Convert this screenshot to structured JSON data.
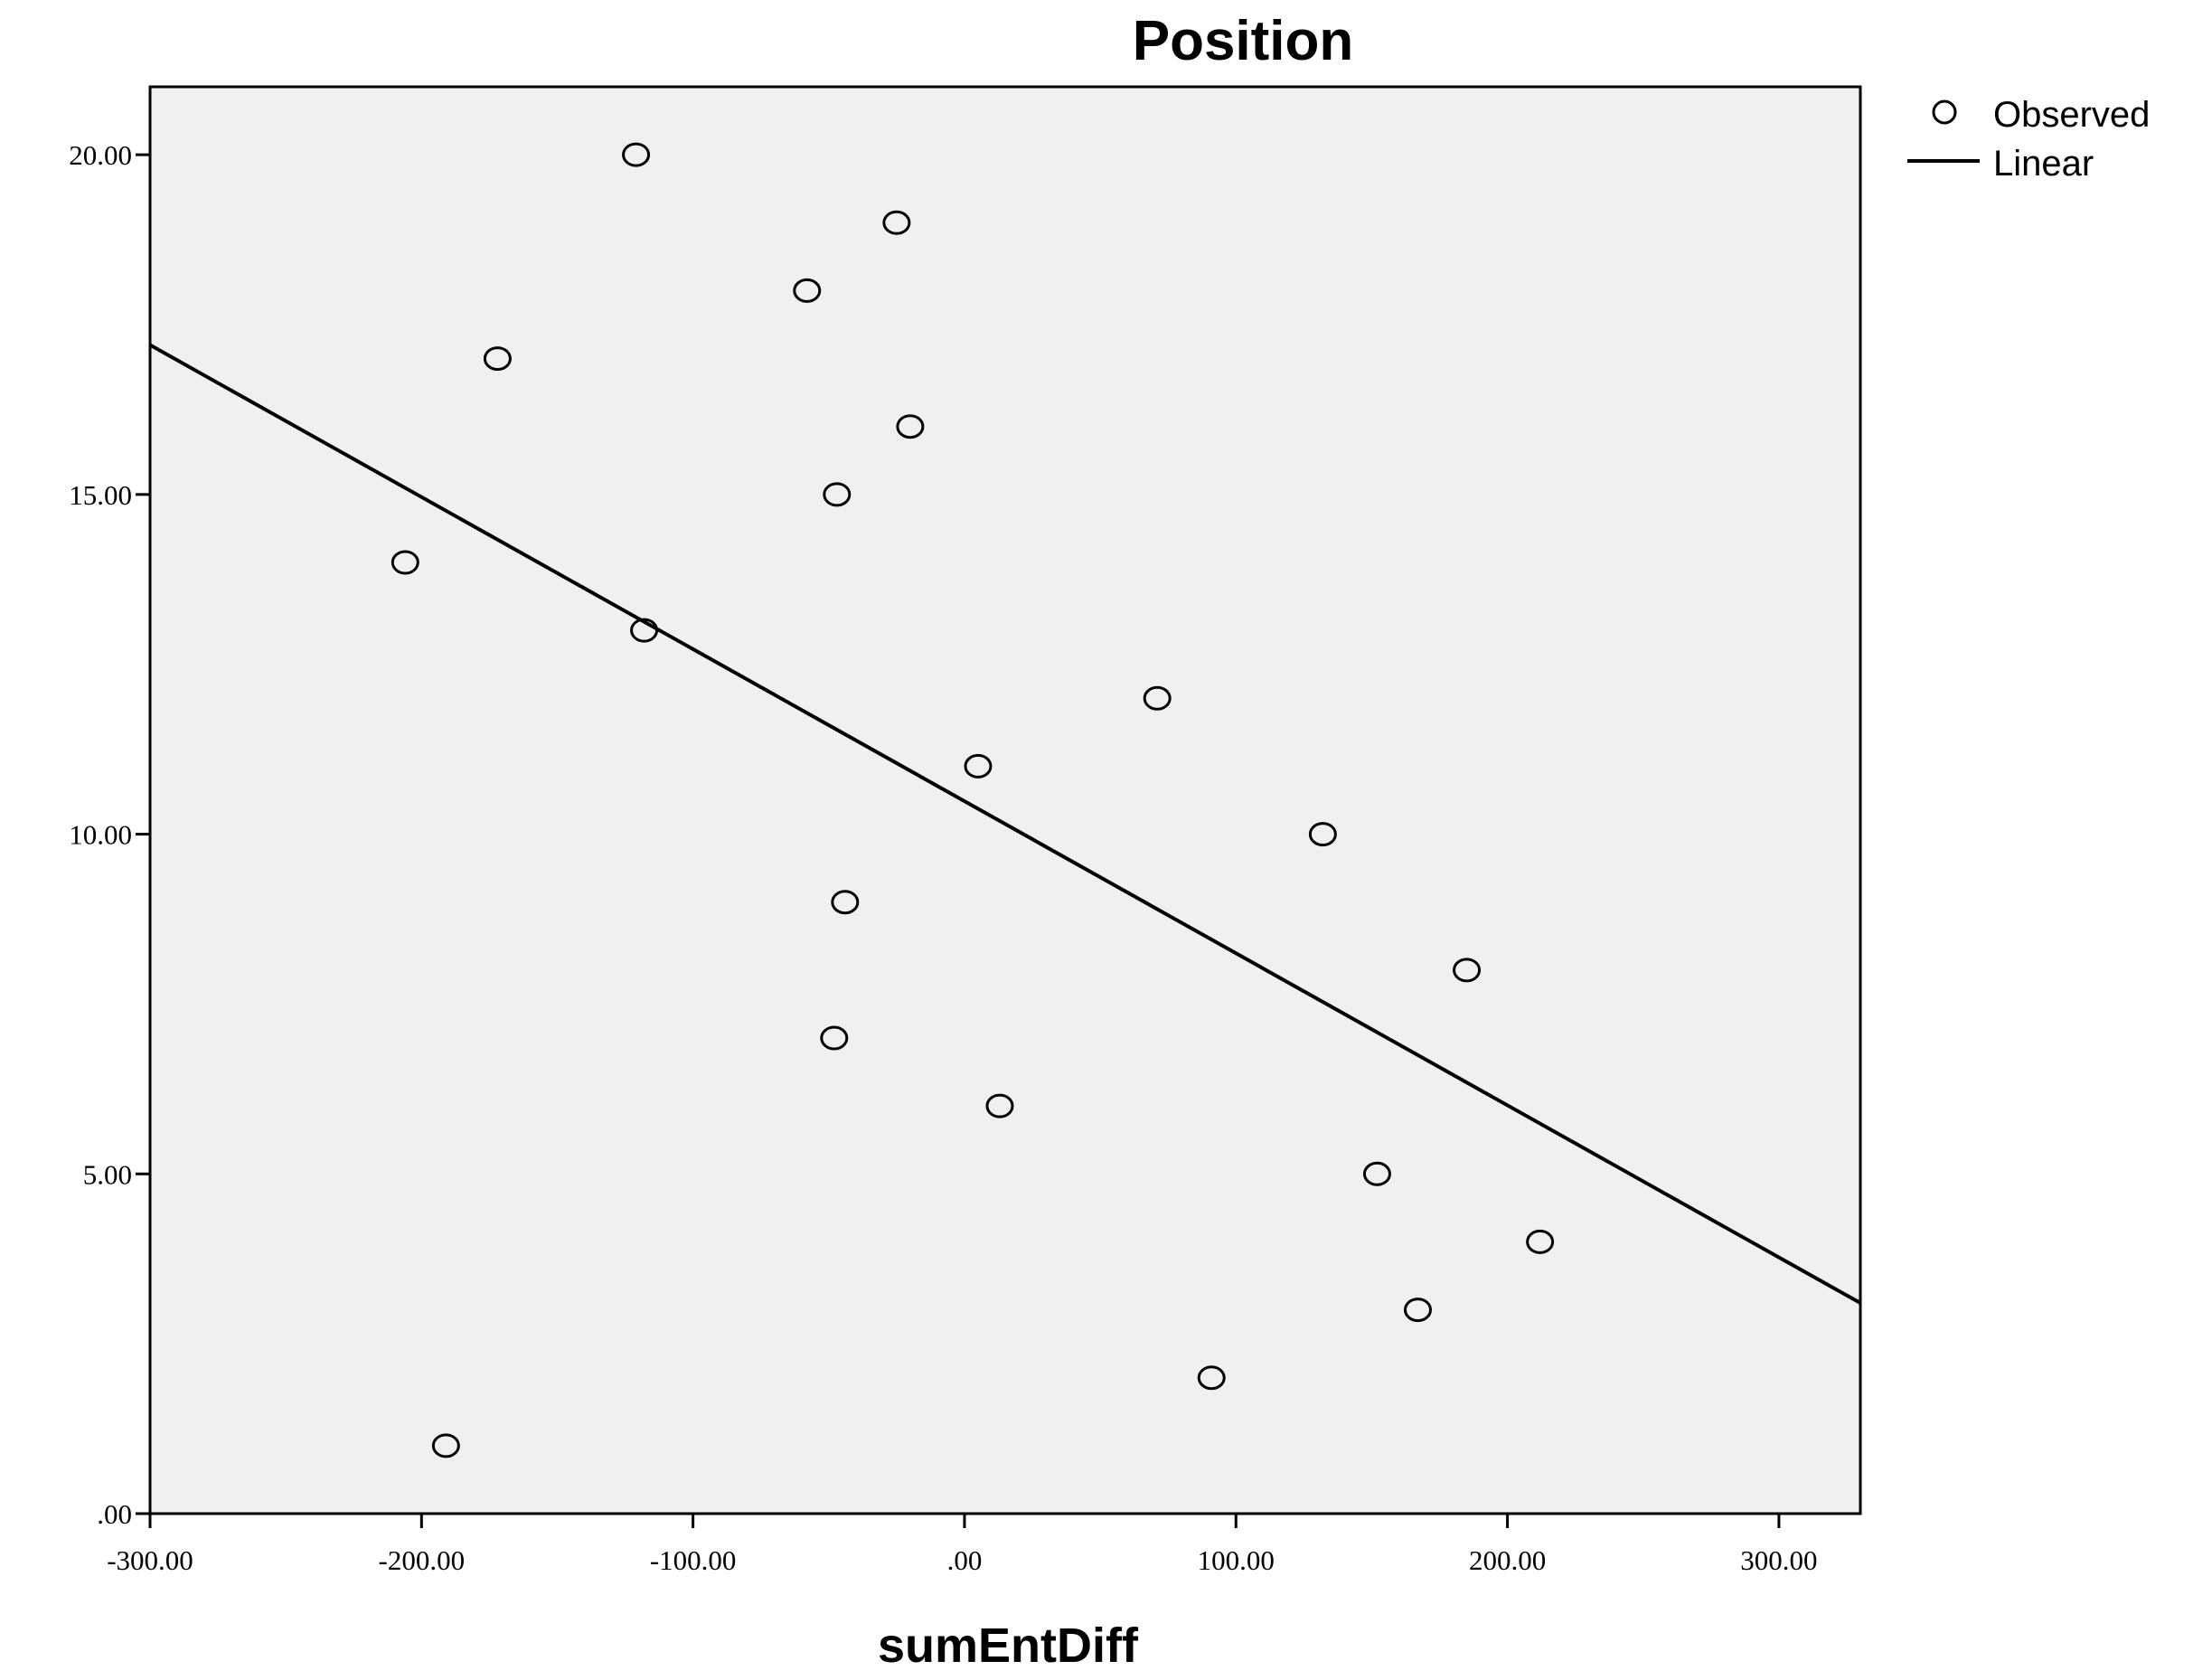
{
  "chart_data": {
    "type": "scatter",
    "title": "Position",
    "xlabel": "sumEntDiff",
    "ylabel": "",
    "xlim": [
      -300,
      330
    ],
    "ylim": [
      0,
      21
    ],
    "x_ticks": [
      {
        "value": -300,
        "label": "-300.00"
      },
      {
        "value": -200,
        "label": "-200.00"
      },
      {
        "value": -100,
        "label": "-100.00"
      },
      {
        "value": 0,
        "label": ".00"
      },
      {
        "value": 100,
        "label": "100.00"
      },
      {
        "value": 200,
        "label": "200.00"
      },
      {
        "value": 300,
        "label": "300.00"
      }
    ],
    "y_ticks": [
      {
        "value": 0,
        "label": ".00"
      },
      {
        "value": 5,
        "label": "5.00"
      },
      {
        "value": 10,
        "label": "10.00"
      },
      {
        "value": 15,
        "label": "15.00"
      },
      {
        "value": 20,
        "label": "20.00"
      }
    ],
    "grid": false,
    "legend_position": "top-right",
    "series": [
      {
        "name": "Observed",
        "kind": "points",
        "marker": "open-circle",
        "points": [
          {
            "x": -121,
            "y": 20
          },
          {
            "x": -25,
            "y": 19
          },
          {
            "x": -58,
            "y": 18
          },
          {
            "x": -172,
            "y": 17
          },
          {
            "x": -20,
            "y": 16
          },
          {
            "x": -47,
            "y": 15
          },
          {
            "x": -206,
            "y": 14
          },
          {
            "x": -118,
            "y": 13
          },
          {
            "x": 71,
            "y": 12
          },
          {
            "x": 5,
            "y": 11
          },
          {
            "x": 132,
            "y": 10
          },
          {
            "x": -44,
            "y": 9
          },
          {
            "x": 185,
            "y": 8
          },
          {
            "x": -48,
            "y": 7
          },
          {
            "x": 13,
            "y": 6
          },
          {
            "x": 152,
            "y": 5
          },
          {
            "x": 212,
            "y": 4
          },
          {
            "x": 167,
            "y": 3
          },
          {
            "x": 91,
            "y": 2
          },
          {
            "x": -191,
            "y": 1
          }
        ]
      },
      {
        "name": "Linear",
        "kind": "line",
        "points": [
          {
            "x": -300,
            "y": 17.2
          },
          {
            "x": 330,
            "y": 3.1
          }
        ]
      }
    ]
  },
  "colors": {
    "plot_background": "#f0f0f0",
    "frame": "#000000",
    "marker": "#000000",
    "line": "#000000"
  }
}
